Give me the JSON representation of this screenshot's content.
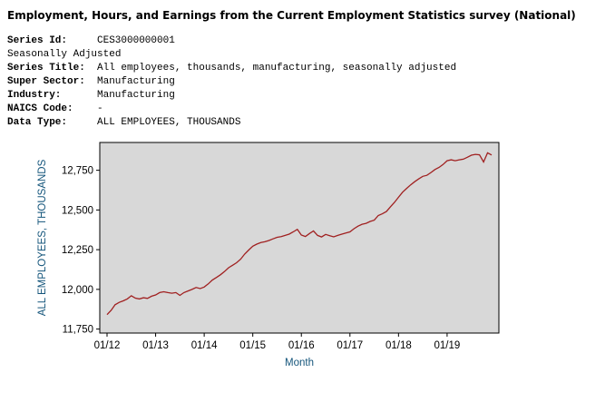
{
  "header": {
    "title": "Employment, Hours, and Earnings from the Current Employment Statistics survey (National)"
  },
  "meta": {
    "rows": [
      {
        "label": "Series Id:",
        "value": "CES3000000001"
      },
      {
        "label": "Series Title:",
        "value": "All employees, thousands, manufacturing, seasonally adjusted"
      },
      {
        "label": "Super Sector:",
        "value": "Manufacturing"
      },
      {
        "label": "Industry:",
        "value": "Manufacturing"
      },
      {
        "label": "NAICS Code:",
        "value": "-"
      },
      {
        "label": "Data Type:",
        "value": "ALL EMPLOYEES, THOUSANDS"
      }
    ],
    "note": "Seasonally Adjusted"
  },
  "chart_data": {
    "type": "line",
    "title": "",
    "xlabel": "Month",
    "ylabel": "ALL EMPLOYEES, THOUSANDS",
    "frequency": "monthly",
    "x_start": "2012-01",
    "x_end": "2019-12",
    "ylim": [
      11725,
      12925
    ],
    "grid": false,
    "legend": false,
    "y_ticks": [
      {
        "value": 11750,
        "label": "11,750"
      },
      {
        "value": 12000,
        "label": "12,000"
      },
      {
        "value": 12250,
        "label": "12,250"
      },
      {
        "value": 12500,
        "label": "12,500"
      },
      {
        "value": 12750,
        "label": "12,750"
      }
    ],
    "x_ticks": [
      {
        "index": 0,
        "label": "01/12"
      },
      {
        "index": 12,
        "label": "01/13"
      },
      {
        "index": 24,
        "label": "01/14"
      },
      {
        "index": 36,
        "label": "01/15"
      },
      {
        "index": 48,
        "label": "01/16"
      },
      {
        "index": 60,
        "label": "01/17"
      },
      {
        "index": 72,
        "label": "01/18"
      },
      {
        "index": 84,
        "label": "01/19"
      }
    ],
    "values": [
      11841,
      11868,
      11903,
      11918,
      11928,
      11940,
      11960,
      11945,
      11940,
      11947,
      11943,
      11957,
      11965,
      11980,
      11985,
      11980,
      11976,
      11980,
      11962,
      11980,
      11990,
      12000,
      12012,
      12005,
      12015,
      12035,
      12058,
      12075,
      12092,
      12112,
      12136,
      12152,
      12168,
      12190,
      12222,
      12248,
      12272,
      12285,
      12295,
      12300,
      12308,
      12318,
      12328,
      12332,
      12340,
      12348,
      12362,
      12378,
      12342,
      12333,
      12352,
      12368,
      12340,
      12330,
      12346,
      12338,
      12331,
      12340,
      12348,
      12355,
      12362,
      12382,
      12398,
      12410,
      12416,
      12428,
      12436,
      12465,
      12476,
      12490,
      12520,
      12548,
      12580,
      12612,
      12636,
      12658,
      12678,
      12696,
      12712,
      12718,
      12736,
      12755,
      12768,
      12786,
      12810,
      12816,
      12810,
      12816,
      12820,
      12832,
      12845,
      12850,
      12847,
      12802,
      12860,
      12846
    ],
    "line_color": "#a02020",
    "plot_bg": "#d8d8d8",
    "border_color": "#000000",
    "tick_color": "#000000",
    "axis_title_color": "#14557b"
  }
}
